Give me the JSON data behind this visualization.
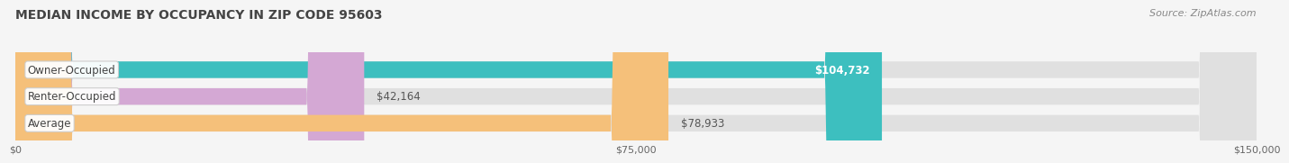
{
  "title": "MEDIAN INCOME BY OCCUPANCY IN ZIP CODE 95603",
  "source": "Source: ZipAtlas.com",
  "categories": [
    "Owner-Occupied",
    "Renter-Occupied",
    "Average"
  ],
  "values": [
    104732,
    42164,
    78933
  ],
  "bar_colors": [
    "#3dbfbf",
    "#d4a8d4",
    "#f5c07a"
  ],
  "label_texts": [
    "$104,732",
    "$42,164",
    "$78,933"
  ],
  "xlim": [
    0,
    150000
  ],
  "xticks": [
    0,
    75000,
    150000
  ],
  "xtick_labels": [
    "$0",
    "$75,000",
    "$150,000"
  ],
  "title_fontsize": 10,
  "source_fontsize": 8,
  "label_fontsize": 8.5,
  "cat_fontsize": 8.5,
  "background_color": "#f5f5f5"
}
